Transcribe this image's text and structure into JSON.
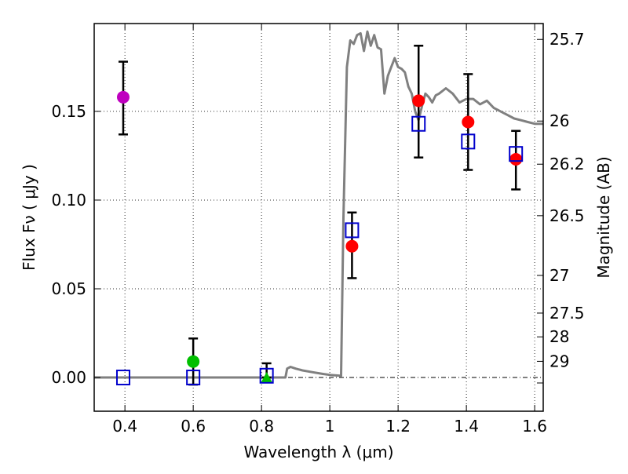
{
  "chart_data": {
    "type": "scatter",
    "title": "",
    "xlabel": "Wavelength  λ (μm)",
    "ylabel": "Flux  Fν  ( μJy )",
    "ylabel_right": "Magnitude (AB)",
    "xlim": [
      0.31,
      1.625
    ],
    "ylim": [
      -0.019,
      0.1995
    ],
    "grid": true,
    "x_ticks": [
      {
        "value": 0.4,
        "label": "0.4"
      },
      {
        "value": 0.6,
        "label": "0.6"
      },
      {
        "value": 0.8,
        "label": "0.8"
      },
      {
        "value": 1.0,
        "label": "1"
      },
      {
        "value": 1.2,
        "label": "1.2"
      },
      {
        "value": 1.4,
        "label": "1.4"
      },
      {
        "value": 1.6,
        "label": "1.6"
      }
    ],
    "y_ticks": [
      {
        "value": 0.0,
        "label": "0.00"
      },
      {
        "value": 0.05,
        "label": "0.05"
      },
      {
        "value": 0.1,
        "label": "0.10"
      },
      {
        "value": 0.15,
        "label": "0.15"
      }
    ],
    "y_right_ticks": [
      {
        "mag": 25.7,
        "label": "25.7"
      },
      {
        "mag": 26.0,
        "label": "26"
      },
      {
        "mag": 26.2,
        "label": "26.2"
      },
      {
        "mag": 26.5,
        "label": "26.5"
      },
      {
        "mag": 27.0,
        "label": "27"
      },
      {
        "mag": 27.5,
        "label": "27.5"
      },
      {
        "mag": 28.0,
        "label": "28"
      },
      {
        "mag": 29.0,
        "label": "29"
      }
    ],
    "ab_zeropoint_ujy": 23.9,
    "series": [
      {
        "name": "model-spectrum",
        "kind": "line",
        "color": "#808080",
        "x": [
          0.31,
          0.87,
          0.875,
          0.885,
          0.9,
          0.92,
          0.95,
          0.98,
          1.0,
          1.03,
          1.033,
          1.04,
          1.05,
          1.06,
          1.07,
          1.08,
          1.09,
          1.1,
          1.11,
          1.12,
          1.13,
          1.14,
          1.15,
          1.16,
          1.17,
          1.18,
          1.19,
          1.2,
          1.21,
          1.22,
          1.23,
          1.24,
          1.25,
          1.26,
          1.27,
          1.28,
          1.29,
          1.3,
          1.31,
          1.32,
          1.34,
          1.36,
          1.38,
          1.4,
          1.42,
          1.44,
          1.46,
          1.48,
          1.5,
          1.52,
          1.54,
          1.56,
          1.58,
          1.6,
          1.625
        ],
        "y": [
          0.0,
          0.0,
          0.005,
          0.006,
          0.005,
          0.004,
          0.003,
          0.002,
          0.0015,
          0.001,
          0.001,
          0.09,
          0.175,
          0.19,
          0.188,
          0.193,
          0.194,
          0.184,
          0.195,
          0.187,
          0.193,
          0.186,
          0.185,
          0.16,
          0.17,
          0.175,
          0.18,
          0.175,
          0.174,
          0.172,
          0.164,
          0.16,
          0.15,
          0.145,
          0.153,
          0.16,
          0.158,
          0.155,
          0.159,
          0.16,
          0.163,
          0.16,
          0.155,
          0.157,
          0.157,
          0.154,
          0.156,
          0.152,
          0.15,
          0.148,
          0.146,
          0.145,
          0.144,
          0.143,
          0.143
        ]
      },
      {
        "name": "observed-red",
        "kind": "points",
        "marker": "circle",
        "color": "#ff0000",
        "x": [
          1.065,
          1.26,
          1.405,
          1.545
        ],
        "y": [
          0.074,
          0.156,
          0.144,
          0.123
        ],
        "yerr_low": [
          0.056,
          0.124,
          0.117,
          0.106
        ],
        "yerr_high": [
          0.093,
          0.187,
          0.171,
          0.139
        ]
      },
      {
        "name": "observed-purple",
        "kind": "points",
        "marker": "circle",
        "color": "#bf00bf",
        "x": [
          0.395
        ],
        "y": [
          0.158
        ],
        "yerr_low": [
          0.137
        ],
        "yerr_high": [
          0.178
        ]
      },
      {
        "name": "observed-green",
        "kind": "points",
        "marker": "circle",
        "color": "#00bf00",
        "x": [
          0.6
        ],
        "y": [
          0.009
        ],
        "yerr_low": [
          -0.004
        ],
        "yerr_high": [
          0.022
        ]
      },
      {
        "name": "observed-green-upper",
        "kind": "points",
        "marker": "triangle",
        "color": "#00bf00",
        "x": [
          0.815
        ],
        "y": [
          0.0
        ],
        "yerr_low": [
          0.0
        ],
        "yerr_high": [
          0.008
        ]
      },
      {
        "name": "model-photometry",
        "kind": "points",
        "marker": "square-open",
        "color": "#0000cc",
        "x": [
          0.395,
          0.6,
          0.815,
          1.065,
          1.26,
          1.405,
          1.545
        ],
        "y": [
          0.0,
          0.0,
          0.001,
          0.083,
          0.143,
          0.133,
          0.126
        ]
      }
    ]
  }
}
